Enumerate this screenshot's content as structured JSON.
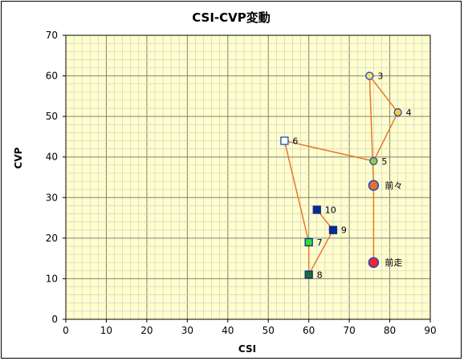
{
  "chart_data": {
    "type": "scatter",
    "title": "CSI-CVP変動",
    "xlabel": "CSI",
    "ylabel": "CVP",
    "xlim": [
      0,
      90
    ],
    "ylim": [
      0,
      70
    ],
    "x_ticks": [
      "0",
      "10",
      "20",
      "30",
      "40",
      "50",
      "60",
      "70",
      "80",
      "90"
    ],
    "y_ticks": [
      "0",
      "10",
      "20",
      "30",
      "40",
      "50",
      "60",
      "70"
    ],
    "grid": true,
    "plot_background": "#FFFFCC",
    "line_color": "#E8782A",
    "points": [
      {
        "label": "10",
        "x": 62,
        "y": 27,
        "marker": "square",
        "fill": "#0A2D8C",
        "stroke": "#0A2D8C"
      },
      {
        "label": "9",
        "x": 66,
        "y": 22,
        "marker": "square",
        "fill": "#0A2D8C",
        "stroke": "#0A2D8C"
      },
      {
        "label": "8",
        "x": 60,
        "y": 11,
        "marker": "square",
        "fill": "#1E6E2A",
        "stroke": "#0A2D8C"
      },
      {
        "label": "7",
        "x": 60,
        "y": 19,
        "marker": "square",
        "fill": "#33DD33",
        "stroke": "#0A2D8C"
      },
      {
        "label": "6",
        "x": 54,
        "y": 44,
        "marker": "square",
        "fill": "#FFFFFF",
        "stroke": "#1A4ACC"
      },
      {
        "label": "5",
        "x": 76,
        "y": 39,
        "marker": "circle",
        "fill": "#99CC33",
        "stroke": "#1A4ACC"
      },
      {
        "label": "4",
        "x": 82,
        "y": 51,
        "marker": "circle",
        "fill": "#FFCC33",
        "stroke": "#1A4ACC"
      },
      {
        "label": "3",
        "x": 75,
        "y": 60,
        "marker": "circle",
        "fill": "#FFE066",
        "stroke": "#1A4ACC"
      },
      {
        "label": "前々",
        "x": 76,
        "y": 33,
        "marker": "circle-large",
        "fill": "#E8702A",
        "stroke": "#1A4ACC"
      },
      {
        "label": "前走",
        "x": 76,
        "y": 14,
        "marker": "circle-large",
        "fill": "#FF2222",
        "stroke": "#1A4ACC"
      }
    ]
  }
}
